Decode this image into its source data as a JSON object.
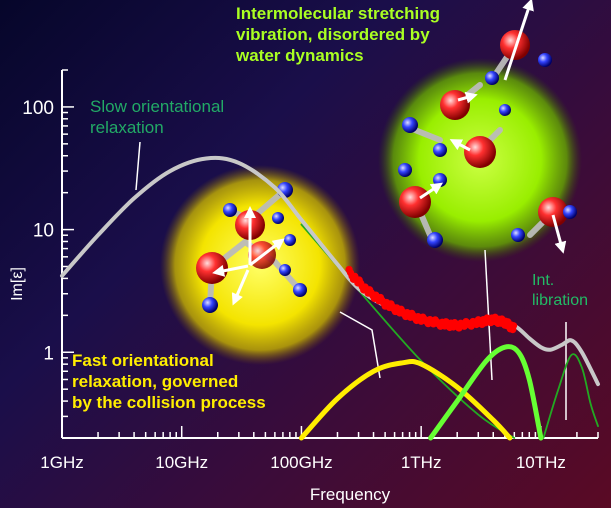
{
  "chart_data": {
    "type": "line",
    "xlabel": "Frequency",
    "ylabel": "Im[ε]",
    "x_scale": "log",
    "y_scale": "log",
    "xlim_hz": [
      1000000000.0,
      30000000000000.0
    ],
    "ylim": [
      0.2,
      200
    ],
    "x_ticks": [
      {
        "value": 1000000000.0,
        "label": "1GHz"
      },
      {
        "value": 10000000000.0,
        "label": "10GHz"
      },
      {
        "value": 100000000000.0,
        "label": "100GHz"
      },
      {
        "value": 1000000000000.0,
        "label": "1THz"
      },
      {
        "value": 10000000000000.0,
        "label": "10THz"
      }
    ],
    "y_ticks": [
      {
        "value": 1,
        "label": "1"
      },
      {
        "value": 10,
        "label": "10"
      },
      {
        "value": 100,
        "label": "100"
      }
    ],
    "series": [
      {
        "name": "",
        "role": "total fit",
        "color": "#c8c8c8",
        "points": [
          [
            1000000000.0,
            4.2
          ],
          [
            2000000000.0,
            9
          ],
          [
            4000000000.0,
            18
          ],
          [
            8000000000.0,
            30
          ],
          [
            16000000000.0,
            38
          ],
          [
            30000000000.0,
            35
          ],
          [
            60000000000.0,
            22
          ],
          [
            100000000000.0,
            12
          ],
          [
            200000000000.0,
            5.2
          ],
          [
            300000000000.0,
            3.3
          ],
          [
            500000000000.0,
            2.4
          ],
          [
            1000000000000.0,
            1.9
          ],
          [
            2000000000000.0,
            1.7
          ],
          [
            4000000000000.0,
            1.85
          ],
          [
            6000000000000.0,
            1.65
          ],
          [
            8000000000000.0,
            1.3
          ],
          [
            10000000000000.0,
            1.1
          ],
          [
            12000000000000.0,
            1.05
          ],
          [
            15000000000000.0,
            1.15
          ],
          [
            18000000000000.0,
            1.25
          ],
          [
            22000000000000.0,
            1.0
          ],
          [
            30000000000000.0,
            0.55
          ]
        ]
      },
      {
        "name": "",
        "role": "measured data",
        "color": "#ff0000",
        "points": [
          [
            250000000000.0,
            4.5
          ],
          [
            350000000000.0,
            3.2
          ],
          [
            500000000000.0,
            2.5
          ],
          [
            700000000000.0,
            2.1
          ],
          [
            1000000000000.0,
            1.85
          ],
          [
            1500000000000.0,
            1.7
          ],
          [
            2000000000000.0,
            1.65
          ],
          [
            3000000000000.0,
            1.75
          ],
          [
            4000000000000.0,
            1.85
          ],
          [
            5000000000000.0,
            1.75
          ],
          [
            6000000000000.0,
            1.55
          ]
        ]
      },
      {
        "name": "",
        "role": "slow orientational relaxation extrapolation",
        "color": "#22aa22",
        "points": [
          [
            100000000000.0,
            11
          ],
          [
            300000000000.0,
            3.2
          ],
          [
            1000000000000.0,
            0.85
          ],
          [
            3000000000000.0,
            0.31
          ],
          [
            6000000000000.0,
            0.2
          ]
        ]
      },
      {
        "name": "",
        "role": "fast orientational relaxation",
        "color": "#ffee00",
        "points": [
          [
            100000000000.0,
            0.2
          ],
          [
            200000000000.0,
            0.42
          ],
          [
            400000000000.0,
            0.7
          ],
          [
            700000000000.0,
            0.82
          ],
          [
            1000000000000.0,
            0.8
          ],
          [
            2000000000000.0,
            0.52
          ],
          [
            4000000000000.0,
            0.28
          ],
          [
            5500000000000.0,
            0.2
          ]
        ]
      },
      {
        "name": "",
        "role": "intermolecular stretching vibration",
        "color": "#66ff33",
        "points": [
          [
            1200000000000.0,
            0.2
          ],
          [
            2000000000000.0,
            0.4
          ],
          [
            3500000000000.0,
            0.85
          ],
          [
            5000000000000.0,
            1.1
          ],
          [
            6500000000000.0,
            1.0
          ],
          [
            8000000000000.0,
            0.6
          ],
          [
            10000000000000.0,
            0.2
          ]
        ]
      },
      {
        "name": "",
        "role": "intermolecular libration",
        "color": "#22aa22",
        "points": [
          [
            10500000000000.0,
            0.2
          ],
          [
            14000000000000.0,
            0.5
          ],
          [
            18000000000000.0,
            0.95
          ],
          [
            22000000000000.0,
            0.75
          ],
          [
            26000000000000.0,
            0.38
          ],
          [
            30000000000000.0,
            0.25
          ]
        ]
      }
    ],
    "annotations": [
      {
        "id": "slow",
        "lines": [
          "Slow orientational",
          "relaxation"
        ],
        "color": "#22aa66"
      },
      {
        "id": "fast",
        "lines": [
          "Fast orientational",
          "relaxation, governed",
          "by the collision process"
        ],
        "color": "#ffee00"
      },
      {
        "id": "stretch",
        "lines": [
          "Intermolecular stretching",
          "vibration, disordered by",
          "water dynamics"
        ],
        "color": "#aaff22"
      },
      {
        "id": "libration",
        "lines": [
          "Int.",
          "libration"
        ],
        "color": "#22bb66"
      }
    ],
    "colors": {
      "axis": "#ffffff",
      "yellow_glow": "#ffff00",
      "green_glow": "#aaff00"
    },
    "grid": false,
    "legend": "none"
  }
}
